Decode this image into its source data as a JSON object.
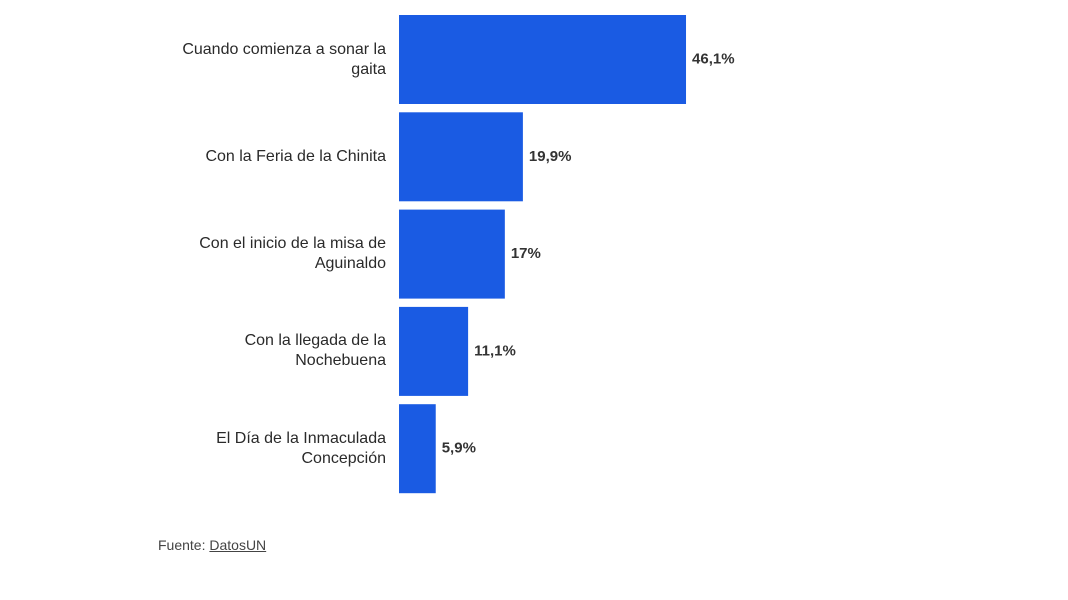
{
  "chart_data": {
    "type": "bar",
    "orientation": "horizontal",
    "categories": [
      "Cuando comienza a sonar la gaita",
      "Con la Feria de la Chinita",
      "Con el inicio de la misa de Aguinaldo",
      "Con la llegada de la Nochebuena",
      "El Día de la Inmaculada Concepción"
    ],
    "values": [
      46.1,
      19.9,
      17,
      11.1,
      5.9
    ],
    "value_labels": [
      "46,1%",
      "19,9%",
      "17%",
      "11,1%",
      "5,9%"
    ],
    "color": "#1a5be3",
    "source_label": "Fuente:",
    "source_name": "DatosUN"
  }
}
